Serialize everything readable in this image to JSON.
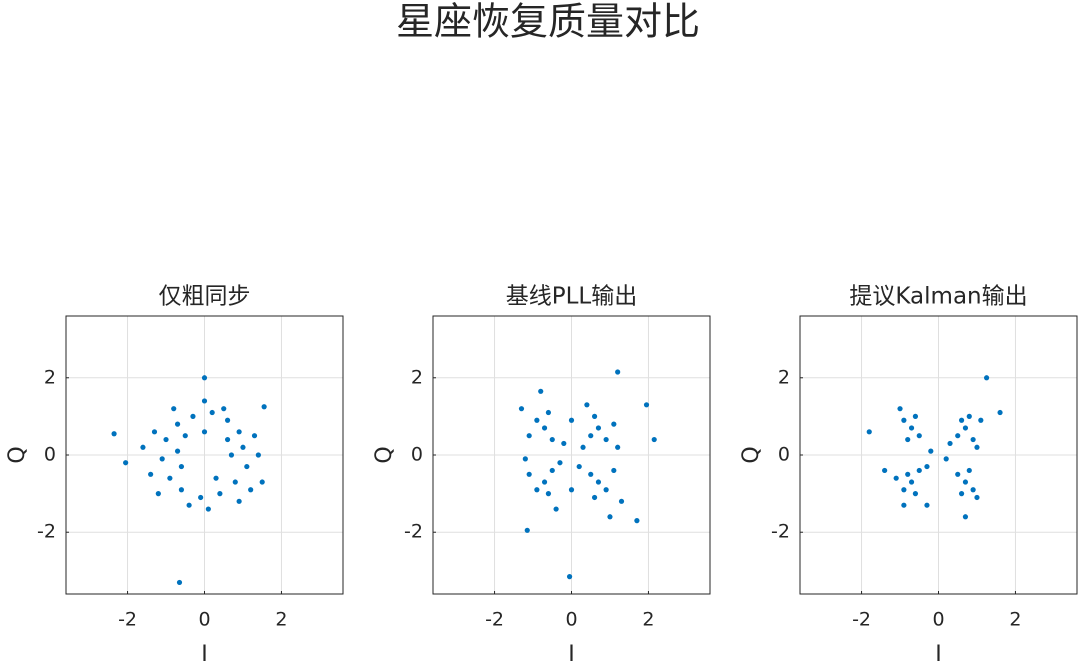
{
  "title": "星座恢复质量对比",
  "chart_data": [
    {
      "type": "scatter",
      "title": "仅粗同步",
      "xlabel": "I",
      "ylabel": "Q",
      "color": "#0072BD",
      "grid": true,
      "xlim": [
        -3.6,
        3.6
      ],
      "ylim": [
        -3.6,
        3.6
      ],
      "xticks": [
        -2,
        0,
        2
      ],
      "yticks": [
        -2,
        0,
        2
      ],
      "x": [
        1.0,
        0.9,
        0.6,
        0.2,
        -0.3,
        -0.7,
        -1.0,
        -1.1,
        -0.9,
        -0.6,
        -0.1,
        0.4,
        0.8,
        1.1,
        0.6,
        -0.5,
        -0.6,
        0.3,
        1.3,
        -1.3,
        -1.4,
        1.2,
        0.0,
        0.1,
        0.5,
        -0.8,
        -1.2,
        0.9,
        1.4,
        -0.4,
        0.7,
        -0.7,
        0.0,
        0.0,
        -2.35,
        -2.05,
        -0.65,
        1.55,
        1.5,
        -1.6
      ],
      "y": [
        0.2,
        0.6,
        0.9,
        1.1,
        1.0,
        0.8,
        0.4,
        -0.1,
        -0.6,
        -0.9,
        -1.1,
        -1.0,
        -0.7,
        -0.3,
        0.4,
        0.5,
        -0.3,
        -0.6,
        0.5,
        0.6,
        -0.5,
        -0.9,
        1.4,
        -1.4,
        1.2,
        1.2,
        -1.0,
        -1.2,
        0.0,
        -1.3,
        0.0,
        0.1,
        0.6,
        2.0,
        0.55,
        -0.2,
        -3.3,
        1.25,
        -0.7,
        0.2
      ]
    },
    {
      "type": "scatter",
      "title": "基线PLL输出",
      "xlabel": "I",
      "ylabel": "Q",
      "color": "#0072BD",
      "grid": true,
      "xlim": [
        -3.6,
        3.6
      ],
      "ylim": [
        -3.6,
        3.6
      ],
      "xticks": [
        -2,
        0,
        2
      ],
      "yticks": [
        -2,
        0,
        2
      ],
      "x": [
        0.7,
        0.5,
        0.9,
        0.6,
        1.1,
        -0.7,
        -0.5,
        -0.9,
        -0.6,
        -1.1,
        -0.7,
        -0.5,
        -0.9,
        -0.6,
        -1.1,
        0.7,
        0.5,
        0.9,
        0.6,
        1.1,
        0.3,
        -0.3,
        0.2,
        -0.2,
        1.3,
        -1.3,
        1.2,
        -1.2,
        0.0,
        0.0,
        1.2,
        2.15,
        1.95,
        -1.15,
        -0.05,
        1.7,
        -0.8,
        0.4,
        -0.4,
        1.0
      ],
      "y": [
        0.7,
        0.5,
        0.4,
        1.0,
        0.8,
        0.7,
        0.4,
        0.9,
        1.1,
        0.5,
        -0.7,
        -0.4,
        -0.9,
        -1.0,
        -0.5,
        -0.7,
        -0.5,
        -0.9,
        -1.1,
        -0.4,
        0.2,
        -0.2,
        -0.3,
        0.3,
        -1.2,
        1.2,
        0.2,
        -0.1,
        0.9,
        -0.9,
        2.15,
        0.4,
        1.3,
        -1.95,
        -3.15,
        -1.7,
        1.65,
        1.3,
        -1.4,
        -1.6
      ]
    },
    {
      "type": "scatter",
      "title": "提议Kalman输出",
      "xlabel": "I",
      "ylabel": "Q",
      "color": "#0072BD",
      "grid": true,
      "xlim": [
        -3.6,
        3.6
      ],
      "ylim": [
        -3.6,
        3.6
      ],
      "xticks": [
        -2,
        0,
        2
      ],
      "yticks": [
        -2,
        0,
        2
      ],
      "x": [
        0.7,
        0.5,
        0.9,
        0.6,
        0.8,
        -0.7,
        -0.5,
        -0.9,
        -0.6,
        -0.8,
        -0.7,
        -0.5,
        -0.9,
        -0.6,
        -0.8,
        0.7,
        0.5,
        0.9,
        0.6,
        0.8,
        0.3,
        -0.3,
        1.1,
        -1.1,
        0.2,
        -0.2,
        1.0,
        -1.0,
        1.25,
        -1.8,
        1.6,
        -1.4,
        0.7,
        -0.3,
        1.0,
        -0.9
      ],
      "y": [
        0.7,
        0.5,
        0.4,
        0.9,
        1.0,
        0.7,
        0.5,
        0.9,
        1.0,
        0.4,
        -0.7,
        -0.4,
        -0.9,
        -1.0,
        -0.5,
        -0.7,
        -0.5,
        -0.9,
        -1.0,
        -0.4,
        0.3,
        -0.3,
        0.9,
        -0.6,
        -0.1,
        0.1,
        -1.1,
        1.2,
        2.0,
        0.6,
        1.1,
        -0.4,
        -1.6,
        -1.3,
        0.2,
        -1.3
      ]
    }
  ]
}
